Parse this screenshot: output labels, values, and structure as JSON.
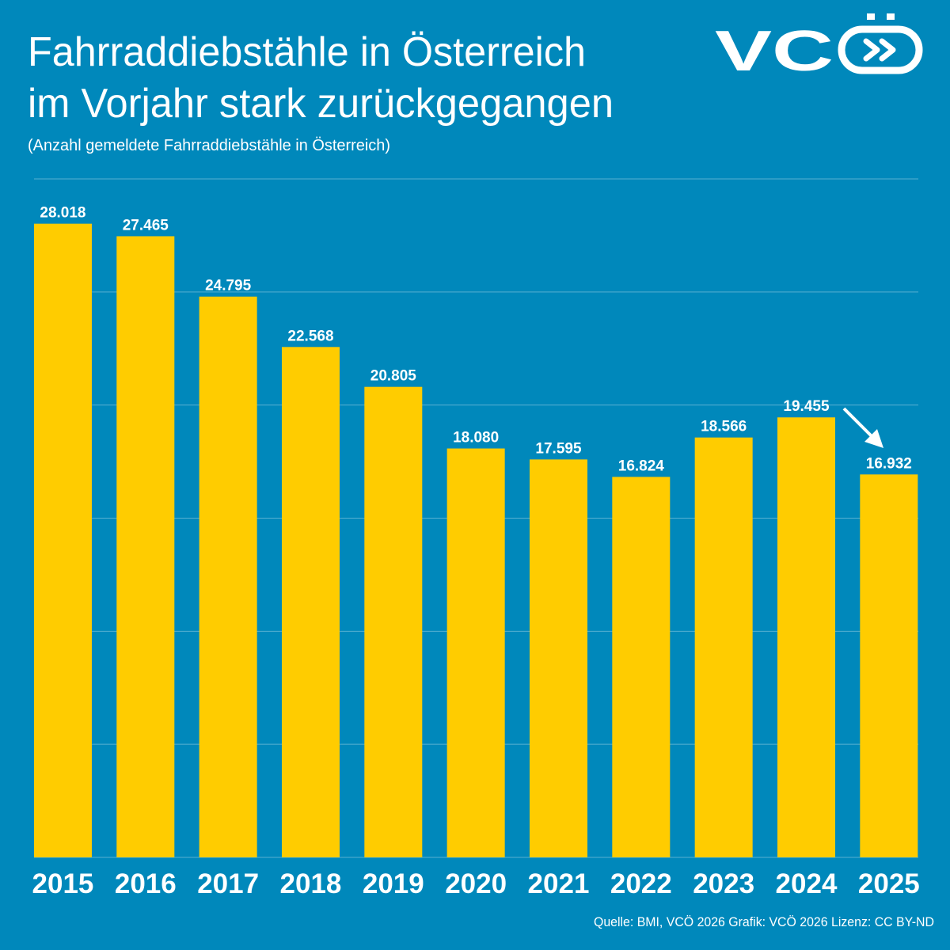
{
  "chart_data": {
    "type": "bar",
    "title": [
      "Fahrraddiebstähle in Österreich",
      "im Vorjahr stark zurückgegangen"
    ],
    "subtitle": "(Anzahl gemeldete Fahrraddiebstähle in Österreich)",
    "logo": "VC",
    "source": "Quelle: BMI, VCÖ 2026 Grafik: VCÖ 2026 Lizenz: CC BY-ND",
    "categories": [
      "2015",
      "2016",
      "2017",
      "2018",
      "2019",
      "2020",
      "2021",
      "2022",
      "2023",
      "2024",
      "2025"
    ],
    "values": [
      28018,
      27465,
      24795,
      22568,
      20805,
      18080,
      17595,
      16824,
      18566,
      19455,
      16932
    ],
    "value_labels": [
      "28.018",
      "27.465",
      "24.795",
      "22.568",
      "20.805",
      "18.080",
      "17.595",
      "16.824",
      "18.566",
      "19.455",
      "16.932"
    ],
    "color": "#ffcc00",
    "ylim": [
      0,
      30000
    ],
    "yticks": [
      0,
      5000,
      10000,
      15000,
      20000,
      25000,
      30000
    ],
    "grid": true
  }
}
